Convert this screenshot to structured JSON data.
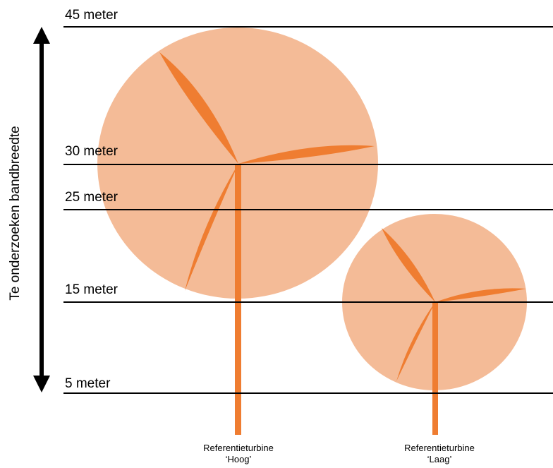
{
  "levels": [
    {
      "label": "45 meter",
      "height_m": 45
    },
    {
      "label": "30 meter",
      "height_m": 30
    },
    {
      "label": "25 meter",
      "height_m": 25
    },
    {
      "label": "15 meter",
      "height_m": 15
    },
    {
      "label": "5 meter",
      "height_m": 5
    }
  ],
  "axis": {
    "label": "Te onderzoeken bandbreedte"
  },
  "turbines": [
    {
      "caption_line1": "Referentieturbine",
      "caption_line2": "‘Hoog’",
      "hub_height_m": 30,
      "rotor_tip_low_m": 15,
      "rotor_tip_high_m": 45
    },
    {
      "caption_line1": "Referentieturbine",
      "caption_line2": "‘Laag’",
      "hub_height_m": 15,
      "rotor_tip_low_m": 5,
      "rotor_tip_high_m": 25
    }
  ],
  "colors": {
    "rotor_disc": "#f4bb97",
    "tower_blade": "#ef7d31",
    "line": "#000000"
  }
}
